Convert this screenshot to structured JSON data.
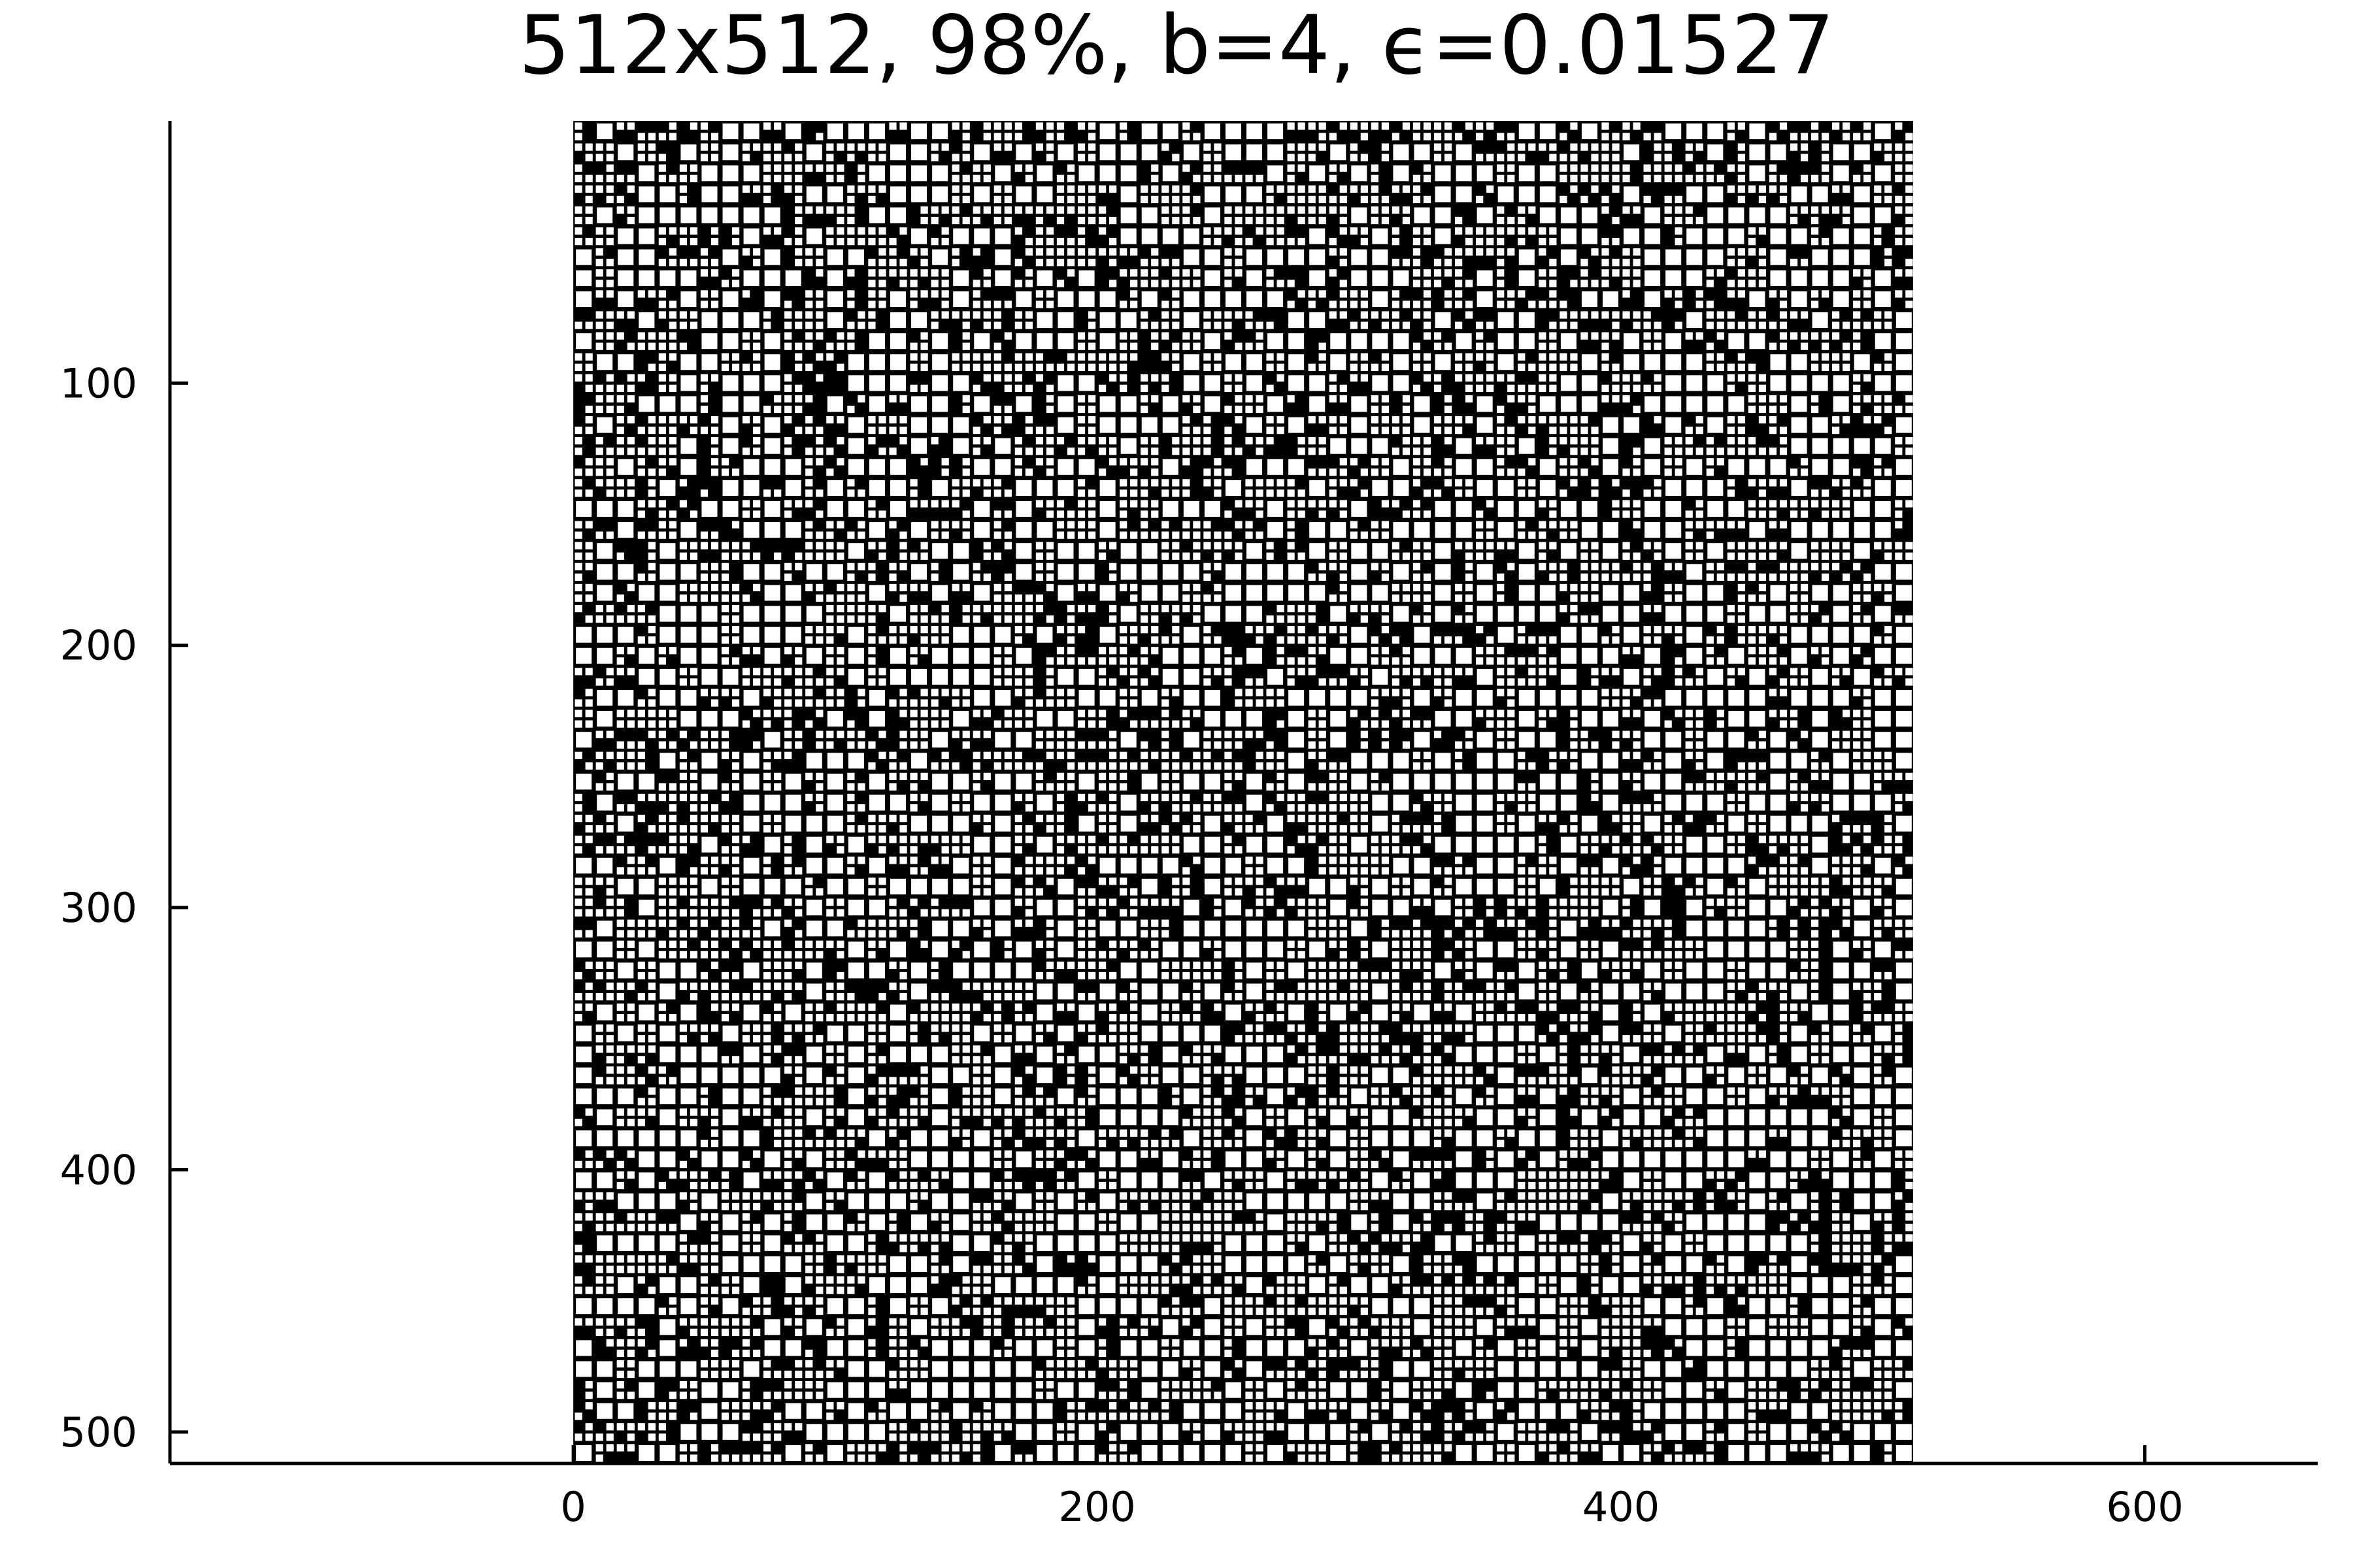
{
  "chart_data": {
    "type": "heatmap",
    "title": "512x512, 98%, b=4, ϵ=0.01527",
    "xlabel": "",
    "ylabel": "",
    "matrix_size": [
      512,
      512
    ],
    "block_size": 4,
    "sparsity_percent": 98,
    "epsilon": 0.01527,
    "xlim": [
      -154,
      666
    ],
    "ylim": [
      0,
      512
    ],
    "y_axis_inverted": true,
    "x_ticks": [
      0,
      200,
      400,
      600
    ],
    "y_ticks": [
      100,
      200,
      300,
      400,
      500
    ],
    "grid": false,
    "legend": "none",
    "colors": {
      "filled": "#000000",
      "empty": "#ffffff",
      "axis": "#000000"
    },
    "block_grid": {
      "description": "hierarchical block partition of the 512x512 matrix; black cells are stored nonzero 4x4 blocks, white cells are empty blocks",
      "cells": 128
    }
  }
}
